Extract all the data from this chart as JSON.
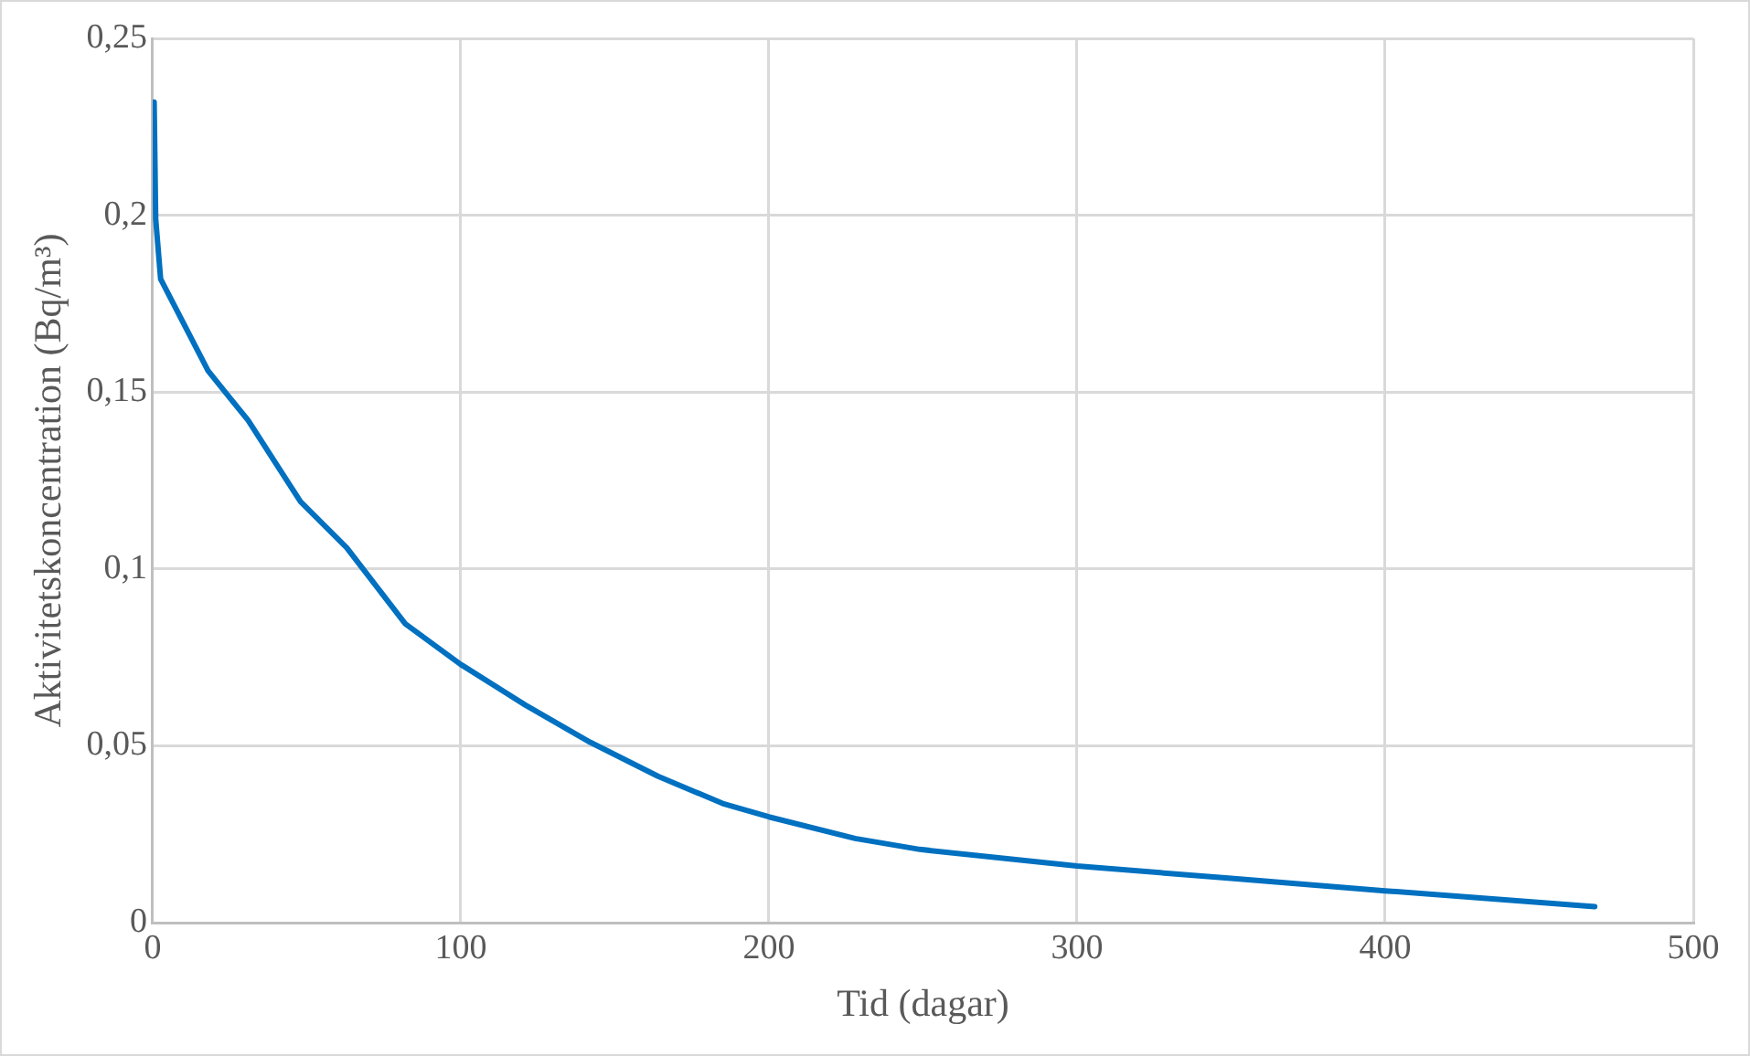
{
  "chart_data": {
    "type": "line",
    "xlabel": "Tid (dagar)",
    "ylabel": "Aktivitetskoncentration (Bq/m³)",
    "xlim": [
      0,
      500
    ],
    "xticks": [
      0,
      100,
      200,
      300,
      400,
      500
    ],
    "ylim": [
      0,
      0.25
    ],
    "yticks": [
      {
        "value": 0,
        "label": "0"
      },
      {
        "value": 0.05,
        "label": "0,05"
      },
      {
        "value": 0.1,
        "label": "0,1"
      },
      {
        "value": 0.15,
        "label": "0,15"
      },
      {
        "value": 0.2,
        "label": "0,2"
      },
      {
        "value": 0.25,
        "label": "0,25"
      }
    ],
    "grid": true,
    "marker": "none",
    "line_style": "solid",
    "series": [
      {
        "color": "#0070c0",
        "x": [
          0.5,
          1,
          2.6,
          18,
          31,
          48,
          63,
          82,
          100,
          121,
          142,
          164,
          185,
          200,
          228,
          249,
          300,
          350,
          400,
          468
        ],
        "values": [
          0.232,
          0.199,
          0.182,
          0.156,
          0.142,
          0.119,
          0.106,
          0.0845,
          0.073,
          0.0615,
          0.051,
          0.0414,
          0.0337,
          0.0299,
          0.0238,
          0.0207,
          0.016,
          0.0125,
          0.009,
          0.0045
        ]
      }
    ]
  }
}
